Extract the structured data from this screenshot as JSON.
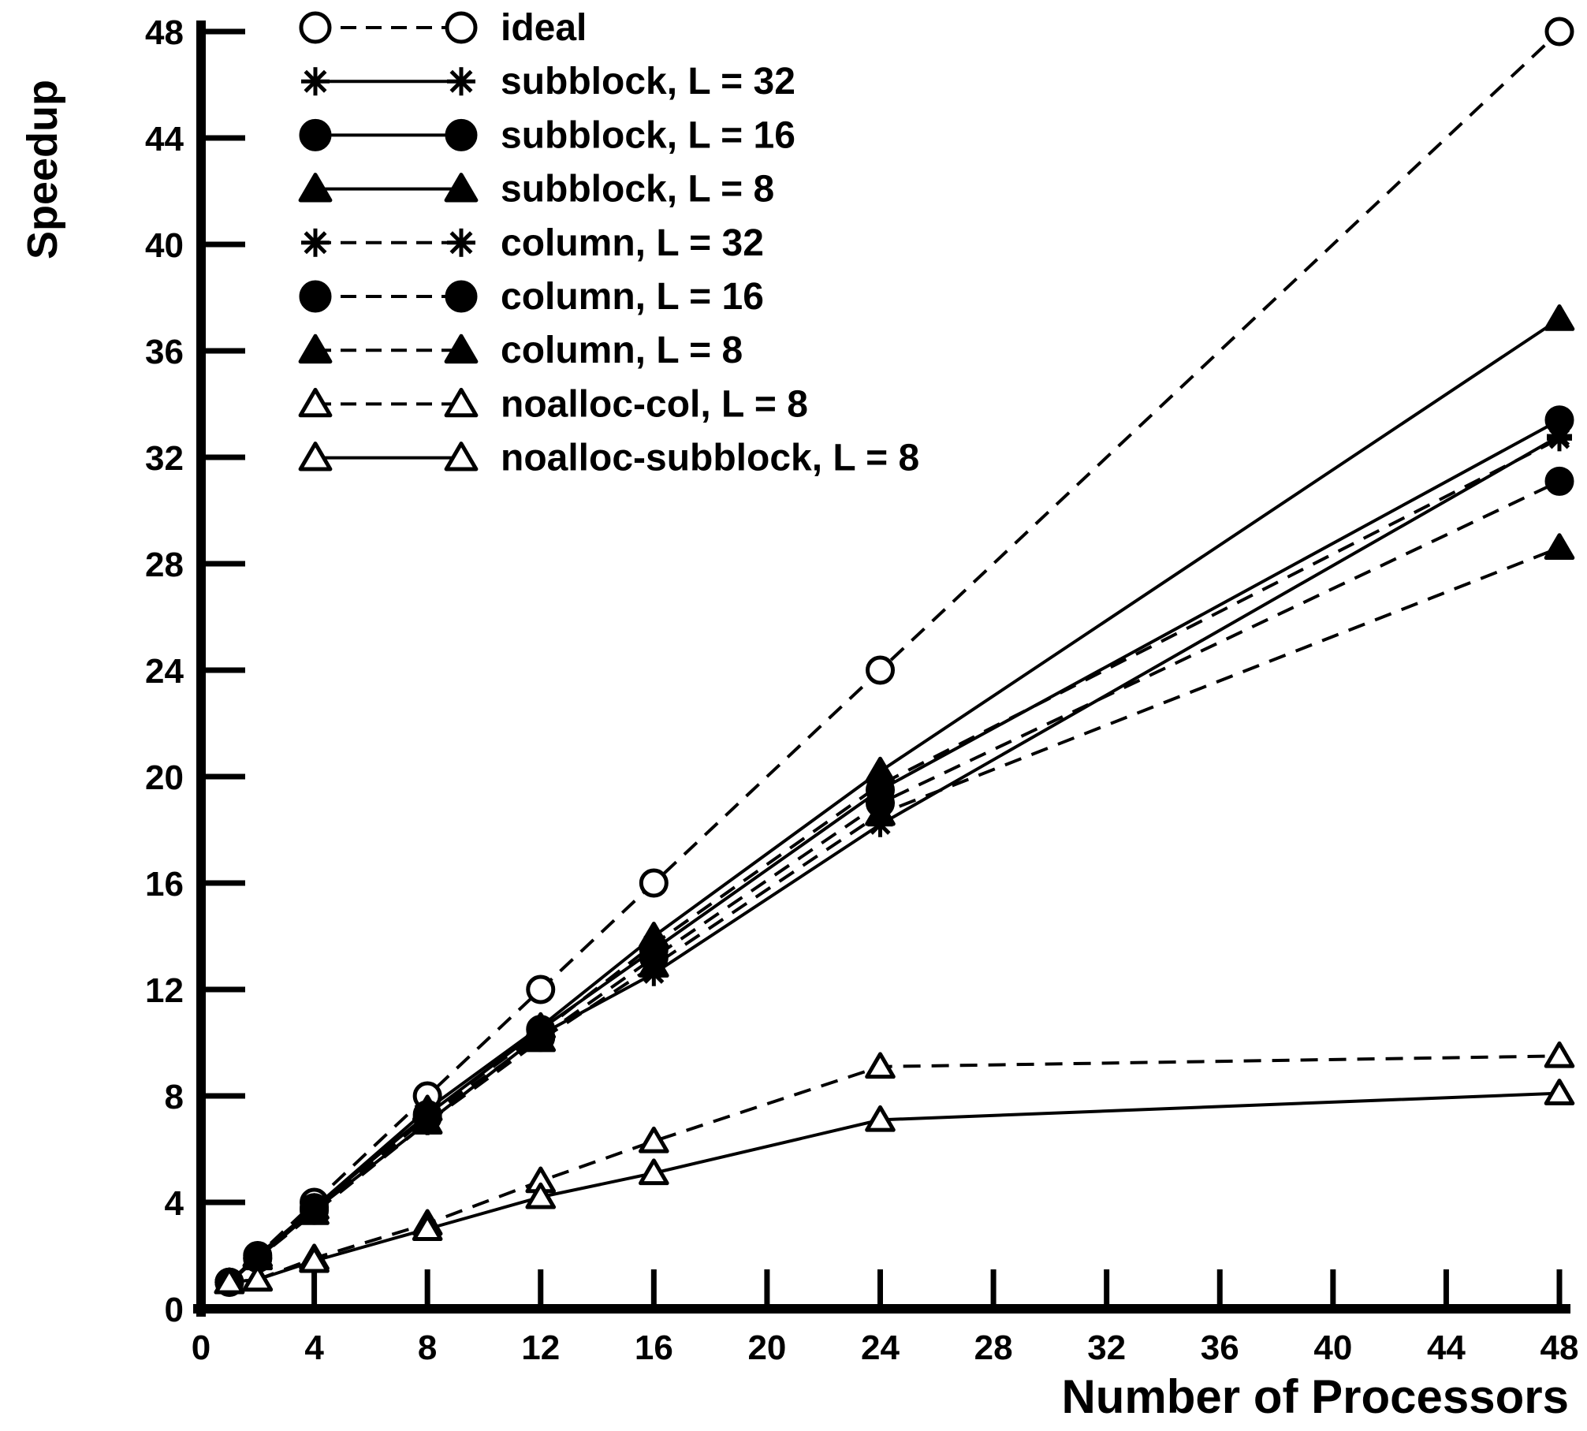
{
  "chart_data": {
    "type": "line",
    "title": "",
    "xlabel": "Number of Processors",
    "ylabel": "Speedup",
    "xlim": [
      0,
      48
    ],
    "ylim": [
      0,
      48
    ],
    "xticks": [
      0,
      4,
      8,
      12,
      16,
      20,
      24,
      28,
      32,
      36,
      40,
      44,
      48
    ],
    "yticks": [
      0,
      4,
      8,
      12,
      16,
      20,
      24,
      28,
      32,
      36,
      40,
      44,
      48
    ],
    "grid": false,
    "legend_position": "top-left",
    "series": [
      {
        "name": "ideal",
        "marker": "circle-open",
        "line": "dashed",
        "x": [
          1,
          2,
          4,
          8,
          12,
          16,
          24,
          48
        ],
        "y": [
          1,
          2,
          4,
          8,
          12,
          16,
          24,
          48
        ]
      },
      {
        "name": "subblock, L = 32",
        "marker": "asterisk",
        "line": "solid",
        "x": [
          1,
          2,
          4,
          8,
          12,
          16,
          24,
          48
        ],
        "y": [
          1,
          1.9,
          3.7,
          7.0,
          10.3,
          12.6,
          18.2,
          32.8
        ]
      },
      {
        "name": "subblock, L = 16",
        "marker": "circle-filled",
        "line": "solid",
        "x": [
          1,
          2,
          4,
          8,
          12,
          16,
          24,
          48
        ],
        "y": [
          1,
          1.9,
          3.8,
          7.3,
          10.5,
          13.5,
          19.5,
          33.4
        ]
      },
      {
        "name": "subblock, L = 8",
        "marker": "triangle-filled",
        "line": "solid",
        "x": [
          1,
          2,
          4,
          8,
          12,
          16,
          24,
          48
        ],
        "y": [
          1,
          2.0,
          3.8,
          7.5,
          10.6,
          14.0,
          20.2,
          37.2
        ]
      },
      {
        "name": "column, L = 32",
        "marker": "asterisk",
        "line": "dashed",
        "x": [
          1,
          2,
          4,
          8,
          12,
          16,
          24,
          48
        ],
        "y": [
          1,
          1.9,
          3.7,
          7.3,
          10.4,
          13.7,
          19.7,
          32.7
        ]
      },
      {
        "name": "column, L = 16",
        "marker": "circle-filled",
        "line": "dashed",
        "x": [
          1,
          2,
          4,
          8,
          12,
          16,
          24,
          48
        ],
        "y": [
          1,
          1.9,
          3.7,
          7.2,
          10.2,
          13.2,
          19.0,
          31.1
        ]
      },
      {
        "name": "column, L = 8",
        "marker": "triangle-filled",
        "line": "dashed",
        "x": [
          1,
          2,
          4,
          8,
          12,
          16,
          24,
          48
        ],
        "y": [
          1,
          1.9,
          3.6,
          7.0,
          10.1,
          12.9,
          18.6,
          28.6
        ]
      },
      {
        "name": "noalloc-col, L = 8",
        "marker": "triangle-open",
        "line": "dashed",
        "x": [
          1,
          2,
          4,
          8,
          12,
          16,
          24,
          48
        ],
        "y": [
          1,
          1.1,
          1.9,
          3.2,
          4.8,
          6.3,
          9.1,
          9.5
        ]
      },
      {
        "name": "noalloc-subblock, L = 8",
        "marker": "triangle-open",
        "line": "solid",
        "x": [
          1,
          2,
          4,
          8,
          12,
          16,
          24,
          48
        ],
        "y": [
          1,
          1.1,
          1.8,
          3.0,
          4.2,
          5.1,
          7.1,
          8.1
        ]
      }
    ]
  }
}
